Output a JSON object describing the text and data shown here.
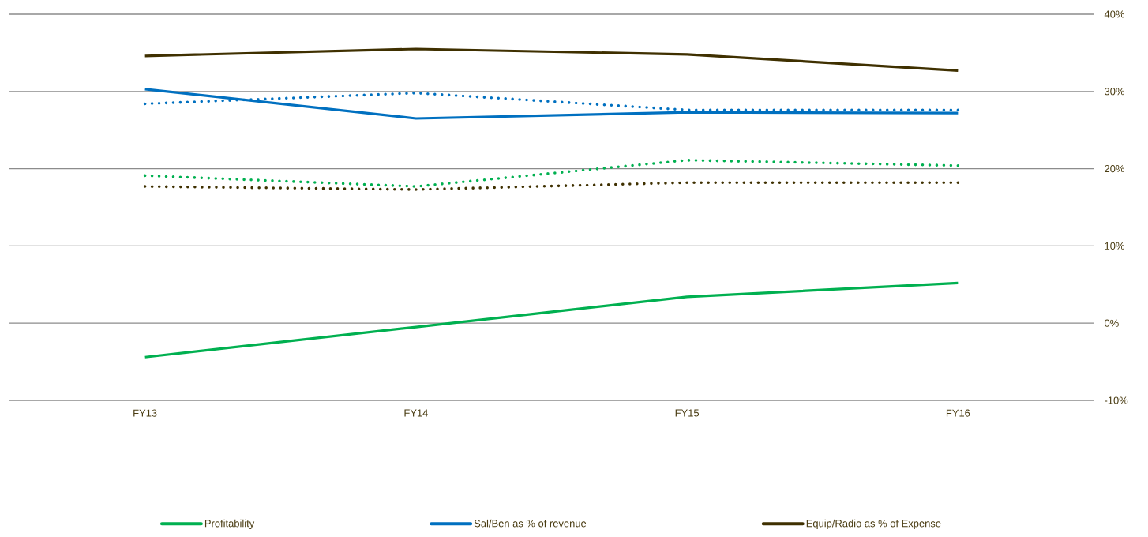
{
  "chart_data": {
    "type": "line",
    "categories": [
      "FY13",
      "FY14",
      "FY15",
      "FY16"
    ],
    "series": [
      {
        "name": "Profitability",
        "color": "#00b050",
        "line_style": "solid",
        "values": [
          -4.4,
          -0.5,
          3.4,
          5.2
        ]
      },
      {
        "name": "Sal/Ben as % of revenue",
        "color": "#0070c0",
        "line_style": "solid",
        "values": [
          30.3,
          26.5,
          27.3,
          27.2
        ]
      },
      {
        "name": "Equip/Radio as % of Expense",
        "color": "#3f3000",
        "line_style": "solid",
        "values": [
          34.6,
          35.5,
          34.8,
          32.7
        ]
      },
      {
        "color": "#00b050",
        "line_style": "dotted",
        "values": [
          19.1,
          17.7,
          21.1,
          20.4
        ]
      },
      {
        "color": "#0070c0",
        "line_style": "dotted",
        "values": [
          28.4,
          29.8,
          27.6,
          27.6
        ]
      },
      {
        "color": "#3f3000",
        "line_style": "dotted",
        "values": [
          17.7,
          17.3,
          18.2,
          18.2
        ]
      }
    ],
    "ylim": [
      -10,
      40
    ],
    "yticks": [
      {
        "value": -10,
        "label": "-10%"
      },
      {
        "value": 0,
        "label": "0%"
      },
      {
        "value": 10,
        "label": "10%"
      },
      {
        "value": 20,
        "label": "20%"
      },
      {
        "value": 30,
        "label": "30%"
      },
      {
        "value": 40,
        "label": "40%"
      }
    ],
    "grid": "y",
    "legend": "bottom",
    "marker": "none"
  }
}
